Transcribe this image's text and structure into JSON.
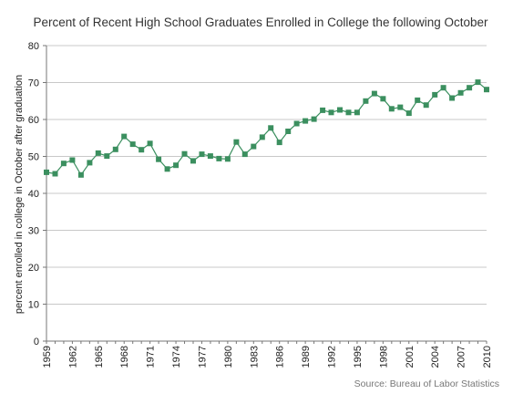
{
  "chart_data": {
    "type": "line",
    "title": "Percent of Recent High School Graduates Enrolled in College the following October",
    "ylabel": "percent enrolled in college in October after graduation",
    "xlabel": "",
    "source": "Source: Bureau of Labor Statistics",
    "ylim": [
      0,
      80
    ],
    "yticks": [
      0,
      10,
      20,
      30,
      40,
      50,
      60,
      70,
      80
    ],
    "xlim": [
      1959,
      2010
    ],
    "xticks": [
      1959,
      1962,
      1965,
      1968,
      1971,
      1974,
      1977,
      1980,
      1983,
      1986,
      1989,
      1992,
      1995,
      1998,
      2001,
      2004,
      2007,
      2010
    ],
    "grid": true,
    "legend": "none",
    "marker": "square",
    "color": "#3b8f5f",
    "x": [
      1959,
      1960,
      1961,
      1962,
      1963,
      1964,
      1965,
      1966,
      1967,
      1968,
      1969,
      1970,
      1971,
      1972,
      1973,
      1974,
      1975,
      1976,
      1977,
      1978,
      1979,
      1980,
      1981,
      1982,
      1983,
      1984,
      1985,
      1986,
      1987,
      1988,
      1989,
      1990,
      1991,
      1992,
      1993,
      1994,
      1995,
      1996,
      1997,
      1998,
      1999,
      2000,
      2001,
      2002,
      2003,
      2004,
      2005,
      2006,
      2007,
      2008,
      2009,
      2010
    ],
    "y": [
      45.7,
      45.3,
      48.1,
      49.0,
      45.0,
      48.3,
      50.9,
      50.1,
      51.9,
      55.4,
      53.3,
      51.8,
      53.5,
      49.2,
      46.6,
      47.6,
      50.7,
      48.8,
      50.6,
      50.1,
      49.4,
      49.3,
      53.9,
      50.6,
      52.7,
      55.2,
      57.7,
      53.8,
      56.8,
      58.9,
      59.6,
      60.1,
      62.5,
      61.9,
      62.6,
      61.9,
      61.9,
      65.0,
      67.0,
      65.6,
      62.9,
      63.3,
      61.7,
      65.2,
      63.9,
      66.7,
      68.6,
      65.8,
      67.2,
      68.6,
      70.1,
      68.1
    ]
  }
}
